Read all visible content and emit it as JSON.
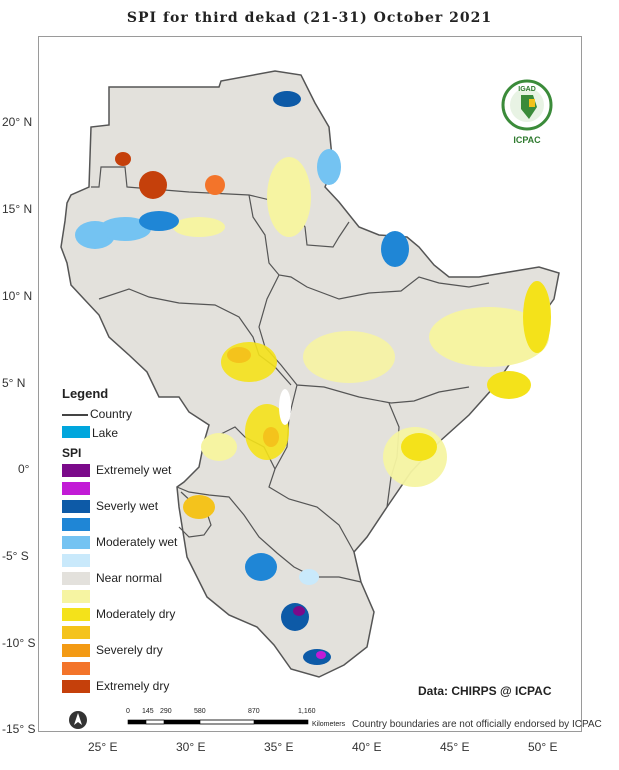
{
  "title": "SPI   for   third  dekad (21-31)  October  2021",
  "y_ticks": [
    "20° N",
    "15° N",
    "10° N",
    "5° N",
    "0°",
    "-5° S",
    "-10° S",
    "-15° S"
  ],
  "x_ticks": [
    "25° E",
    "30° E",
    "35° E",
    "40° E",
    "45° E",
    "50° E"
  ],
  "legend": {
    "title": "Legend",
    "country_label": "Country",
    "lake_label": "Lake",
    "lake_color": "#00a6dd",
    "spi_title": "SPI",
    "classes": [
      {
        "label": "Extremely wet",
        "color": "#7b0a8a"
      },
      {
        "label": "",
        "color": "#c21bd6"
      },
      {
        "label": "Severly wet",
        "color": "#0d5aa7"
      },
      {
        "label": "",
        "color": "#1f86d6"
      },
      {
        "label": "Moderately wet",
        "color": "#74c3f2"
      },
      {
        "label": "",
        "color": "#c9e9fb"
      },
      {
        "label": "Near normal",
        "color": "#e3e1dc"
      },
      {
        "label": "",
        "color": "#f6f4a2"
      },
      {
        "label": "Moderately dry",
        "color": "#f4e21a"
      },
      {
        "label": "",
        "color": "#f4c31c"
      },
      {
        "label": "Severely dry",
        "color": "#f39a14"
      },
      {
        "label": "",
        "color": "#f3742a"
      },
      {
        "label": "Extremely dry",
        "color": "#c5400b"
      }
    ]
  },
  "data_credit": "Data: CHIRPS @ ICPAC",
  "disclaimer": "Country boundaries are not officially endorsed by ICPAC",
  "logo": {
    "top": "IGAD",
    "bottom": "ICPAC"
  },
  "scale_bar": {
    "ticks": [
      "0",
      "145",
      "290",
      "580",
      "870",
      "1,160"
    ],
    "unit": "Kilometers"
  },
  "icons": {
    "north_arrow": "north-arrow-icon"
  }
}
